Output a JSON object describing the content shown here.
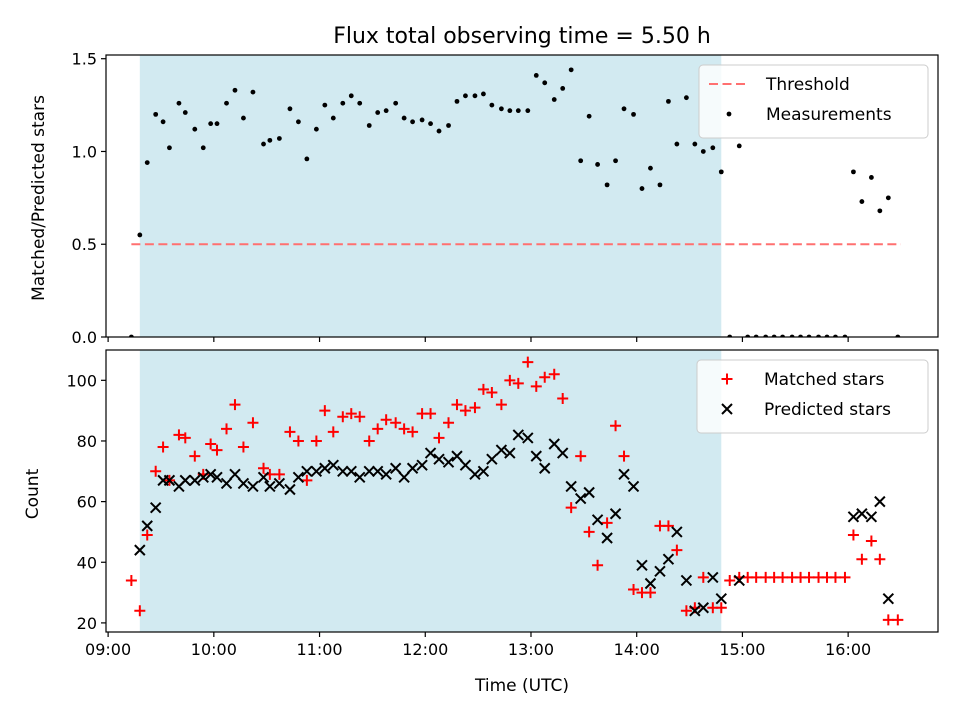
{
  "figure": {
    "title": "Flux total observing time = 5.50 h",
    "xlabel": "Time (UTC)"
  },
  "chart_data": [
    {
      "type": "scatter",
      "ylabel": "Matched/Predicted stars",
      "x_axis": "time (decimal hours UTC)",
      "xlim": [
        8.98,
        16.85
      ],
      "ylim": [
        0,
        1.52
      ],
      "xticks": [
        9,
        10,
        11,
        12,
        13,
        14,
        15,
        16
      ],
      "xtick_labels": [
        "09:00",
        "10:00",
        "11:00",
        "12:00",
        "13:00",
        "14:00",
        "15:00",
        "16:00"
      ],
      "yticks": [
        0,
        0.5,
        1.0,
        1.5
      ],
      "ytick_labels": [
        "0.0",
        "0.5",
        "1.0",
        "1.5"
      ],
      "shaded_interval": [
        9.3,
        14.8
      ],
      "shade_color": "#add8e6",
      "legend_position": "top-right",
      "threshold": {
        "name": "Threshold",
        "value": 0.5,
        "x_range": [
          9.22,
          16.5
        ],
        "color": "#ff7070"
      },
      "series": [
        {
          "name": "Measurements",
          "color": "#000000",
          "marker": "dot",
          "points": [
            [
              9.22,
              0.0
            ],
            [
              9.3,
              0.55
            ],
            [
              9.37,
              0.94
            ],
            [
              9.45,
              1.2
            ],
            [
              9.52,
              1.16
            ],
            [
              9.58,
              1.02
            ],
            [
              9.67,
              1.26
            ],
            [
              9.73,
              1.21
            ],
            [
              9.82,
              1.12
            ],
            [
              9.9,
              1.02
            ],
            [
              9.97,
              1.15
            ],
            [
              10.03,
              1.15
            ],
            [
              10.12,
              1.26
            ],
            [
              10.2,
              1.33
            ],
            [
              10.28,
              1.18
            ],
            [
              10.37,
              1.32
            ],
            [
              10.47,
              1.04
            ],
            [
              10.53,
              1.06
            ],
            [
              10.62,
              1.07
            ],
            [
              10.72,
              1.23
            ],
            [
              10.8,
              1.16
            ],
            [
              10.88,
              0.96
            ],
            [
              10.97,
              1.12
            ],
            [
              11.05,
              1.25
            ],
            [
              11.13,
              1.18
            ],
            [
              11.22,
              1.26
            ],
            [
              11.3,
              1.3
            ],
            [
              11.38,
              1.26
            ],
            [
              11.47,
              1.14
            ],
            [
              11.55,
              1.21
            ],
            [
              11.63,
              1.22
            ],
            [
              11.72,
              1.26
            ],
            [
              11.8,
              1.18
            ],
            [
              11.88,
              1.16
            ],
            [
              11.97,
              1.17
            ],
            [
              12.05,
              1.15
            ],
            [
              12.13,
              1.11
            ],
            [
              12.22,
              1.14
            ],
            [
              12.3,
              1.27
            ],
            [
              12.38,
              1.3
            ],
            [
              12.47,
              1.3
            ],
            [
              12.55,
              1.31
            ],
            [
              12.63,
              1.25
            ],
            [
              12.72,
              1.23
            ],
            [
              12.8,
              1.22
            ],
            [
              12.88,
              1.22
            ],
            [
              12.97,
              1.22
            ],
            [
              13.05,
              1.41
            ],
            [
              13.13,
              1.37
            ],
            [
              13.22,
              1.28
            ],
            [
              13.3,
              1.34
            ],
            [
              13.38,
              1.44
            ],
            [
              13.47,
              0.95
            ],
            [
              13.55,
              1.19
            ],
            [
              13.63,
              0.93
            ],
            [
              13.72,
              0.82
            ],
            [
              13.8,
              0.95
            ],
            [
              13.88,
              1.23
            ],
            [
              13.97,
              1.2
            ],
            [
              14.05,
              0.8
            ],
            [
              14.13,
              0.91
            ],
            [
              14.22,
              0.82
            ],
            [
              14.3,
              1.27
            ],
            [
              14.38,
              1.04
            ],
            [
              14.47,
              1.29
            ],
            [
              14.55,
              1.04
            ],
            [
              14.63,
              1.0
            ],
            [
              14.72,
              1.02
            ],
            [
              14.8,
              0.89
            ],
            [
              14.88,
              0.0
            ],
            [
              14.97,
              1.03
            ],
            [
              15.05,
              0.0
            ],
            [
              15.13,
              0.0
            ],
            [
              15.22,
              0.0
            ],
            [
              15.3,
              0.0
            ],
            [
              15.38,
              0.0
            ],
            [
              15.47,
              0.0
            ],
            [
              15.55,
              0.0
            ],
            [
              15.63,
              0.0
            ],
            [
              15.72,
              0.0
            ],
            [
              15.8,
              0.0
            ],
            [
              15.88,
              0.0
            ],
            [
              15.97,
              0.0
            ],
            [
              16.05,
              0.89
            ],
            [
              16.13,
              0.73
            ],
            [
              16.22,
              0.86
            ],
            [
              16.3,
              0.68
            ],
            [
              16.38,
              0.75
            ],
            [
              16.47,
              0.0
            ]
          ]
        }
      ]
    },
    {
      "type": "scatter",
      "ylabel": "Count",
      "x_axis": "time (decimal hours UTC)",
      "xlim": [
        8.98,
        16.85
      ],
      "ylim": [
        17,
        110
      ],
      "xticks": [
        9,
        10,
        11,
        12,
        13,
        14,
        15,
        16
      ],
      "xtick_labels": [
        "09:00",
        "10:00",
        "11:00",
        "12:00",
        "13:00",
        "14:00",
        "15:00",
        "16:00"
      ],
      "yticks": [
        20,
        40,
        60,
        80,
        100
      ],
      "ytick_labels": [
        "20",
        "40",
        "60",
        "80",
        "100"
      ],
      "shaded_interval": [
        9.3,
        14.8
      ],
      "shade_color": "#add8e6",
      "legend_position": "top-right",
      "series": [
        {
          "name": "Matched stars",
          "color": "#ff0000",
          "marker": "plus",
          "points": [
            [
              9.22,
              34
            ],
            [
              9.3,
              24
            ],
            [
              9.37,
              49
            ],
            [
              9.45,
              70
            ],
            [
              9.52,
              78
            ],
            [
              9.58,
              67
            ],
            [
              9.67,
              82
            ],
            [
              9.73,
              81
            ],
            [
              9.82,
              75
            ],
            [
              9.9,
              69
            ],
            [
              9.97,
              79
            ],
            [
              10.03,
              77
            ],
            [
              10.12,
              84
            ],
            [
              10.2,
              92
            ],
            [
              10.28,
              78
            ],
            [
              10.37,
              86
            ],
            [
              10.47,
              71
            ],
            [
              10.53,
              69
            ],
            [
              10.62,
              69
            ],
            [
              10.72,
              83
            ],
            [
              10.8,
              80
            ],
            [
              10.88,
              67
            ],
            [
              10.97,
              80
            ],
            [
              11.05,
              90
            ],
            [
              11.13,
              83
            ],
            [
              11.22,
              88
            ],
            [
              11.3,
              89
            ],
            [
              11.38,
              88
            ],
            [
              11.47,
              80
            ],
            [
              11.55,
              84
            ],
            [
              11.63,
              87
            ],
            [
              11.72,
              86
            ],
            [
              11.8,
              84
            ],
            [
              11.88,
              83
            ],
            [
              11.97,
              89
            ],
            [
              12.05,
              89
            ],
            [
              12.13,
              81
            ],
            [
              12.22,
              86
            ],
            [
              12.3,
              92
            ],
            [
              12.38,
              90
            ],
            [
              12.47,
              91
            ],
            [
              12.55,
              97
            ],
            [
              12.63,
              96
            ],
            [
              12.72,
              92
            ],
            [
              12.8,
              100
            ],
            [
              12.88,
              99
            ],
            [
              12.97,
              106
            ],
            [
              13.05,
              98
            ],
            [
              13.13,
              101
            ],
            [
              13.22,
              102
            ],
            [
              13.3,
              94
            ],
            [
              13.38,
              58
            ],
            [
              13.47,
              75
            ],
            [
              13.55,
              50
            ],
            [
              13.63,
              39
            ],
            [
              13.72,
              53
            ],
            [
              13.8,
              85
            ],
            [
              13.88,
              75
            ],
            [
              13.97,
              31
            ],
            [
              14.05,
              30
            ],
            [
              14.13,
              30
            ],
            [
              14.22,
              52
            ],
            [
              14.3,
              52
            ],
            [
              14.38,
              44
            ],
            [
              14.47,
              24
            ],
            [
              14.55,
              25
            ],
            [
              14.63,
              35
            ],
            [
              14.72,
              25
            ],
            [
              14.8,
              25
            ],
            [
              14.88,
              34
            ],
            [
              14.97,
              35
            ],
            [
              15.05,
              35
            ],
            [
              15.13,
              35
            ],
            [
              15.22,
              35
            ],
            [
              15.3,
              35
            ],
            [
              15.38,
              35
            ],
            [
              15.47,
              35
            ],
            [
              15.55,
              35
            ],
            [
              15.63,
              35
            ],
            [
              15.72,
              35
            ],
            [
              15.8,
              35
            ],
            [
              15.88,
              35
            ],
            [
              15.97,
              35
            ],
            [
              16.05,
              49
            ],
            [
              16.13,
              41
            ],
            [
              16.22,
              47
            ],
            [
              16.3,
              41
            ],
            [
              16.38,
              21
            ],
            [
              16.47,
              21
            ]
          ]
        },
        {
          "name": "Predicted stars",
          "color": "#000000",
          "marker": "x",
          "points": [
            [
              9.3,
              44
            ],
            [
              9.37,
              52
            ],
            [
              9.45,
              58
            ],
            [
              9.52,
              67
            ],
            [
              9.58,
              67
            ],
            [
              9.67,
              65
            ],
            [
              9.73,
              67
            ],
            [
              9.82,
              67
            ],
            [
              9.9,
              68
            ],
            [
              9.97,
              69
            ],
            [
              10.03,
              68
            ],
            [
              10.12,
              66
            ],
            [
              10.2,
              69
            ],
            [
              10.28,
              66
            ],
            [
              10.37,
              65
            ],
            [
              10.47,
              68
            ],
            [
              10.53,
              65
            ],
            [
              10.62,
              66
            ],
            [
              10.72,
              64
            ],
            [
              10.8,
              68
            ],
            [
              10.88,
              70
            ],
            [
              10.97,
              70
            ],
            [
              11.05,
              71
            ],
            [
              11.13,
              72
            ],
            [
              11.22,
              70
            ],
            [
              11.3,
              70
            ],
            [
              11.38,
              68
            ],
            [
              11.47,
              70
            ],
            [
              11.55,
              70
            ],
            [
              11.63,
              69
            ],
            [
              11.72,
              71
            ],
            [
              11.8,
              68
            ],
            [
              11.88,
              71
            ],
            [
              11.97,
              72
            ],
            [
              12.05,
              76
            ],
            [
              12.13,
              74
            ],
            [
              12.22,
              73
            ],
            [
              12.3,
              75
            ],
            [
              12.38,
              72
            ],
            [
              12.47,
              69
            ],
            [
              12.55,
              70
            ],
            [
              12.63,
              74
            ],
            [
              12.72,
              77
            ],
            [
              12.8,
              76
            ],
            [
              12.88,
              82
            ],
            [
              12.97,
              81
            ],
            [
              13.05,
              75
            ],
            [
              13.13,
              71
            ],
            [
              13.22,
              79
            ],
            [
              13.3,
              76
            ],
            [
              13.38,
              65
            ],
            [
              13.47,
              61
            ],
            [
              13.55,
              63
            ],
            [
              13.63,
              54
            ],
            [
              13.72,
              48
            ],
            [
              13.8,
              56
            ],
            [
              13.88,
              69
            ],
            [
              13.97,
              65
            ],
            [
              14.05,
              39
            ],
            [
              14.13,
              33
            ],
            [
              14.22,
              37
            ],
            [
              14.3,
              41
            ],
            [
              14.38,
              50
            ],
            [
              14.47,
              34
            ],
            [
              14.55,
              24
            ],
            [
              14.63,
              25
            ],
            [
              14.72,
              35
            ],
            [
              14.8,
              28
            ],
            [
              14.97,
              34
            ],
            [
              16.05,
              55
            ],
            [
              16.13,
              56
            ],
            [
              16.22,
              55
            ],
            [
              16.3,
              60
            ],
            [
              16.38,
              28
            ]
          ]
        }
      ]
    }
  ]
}
